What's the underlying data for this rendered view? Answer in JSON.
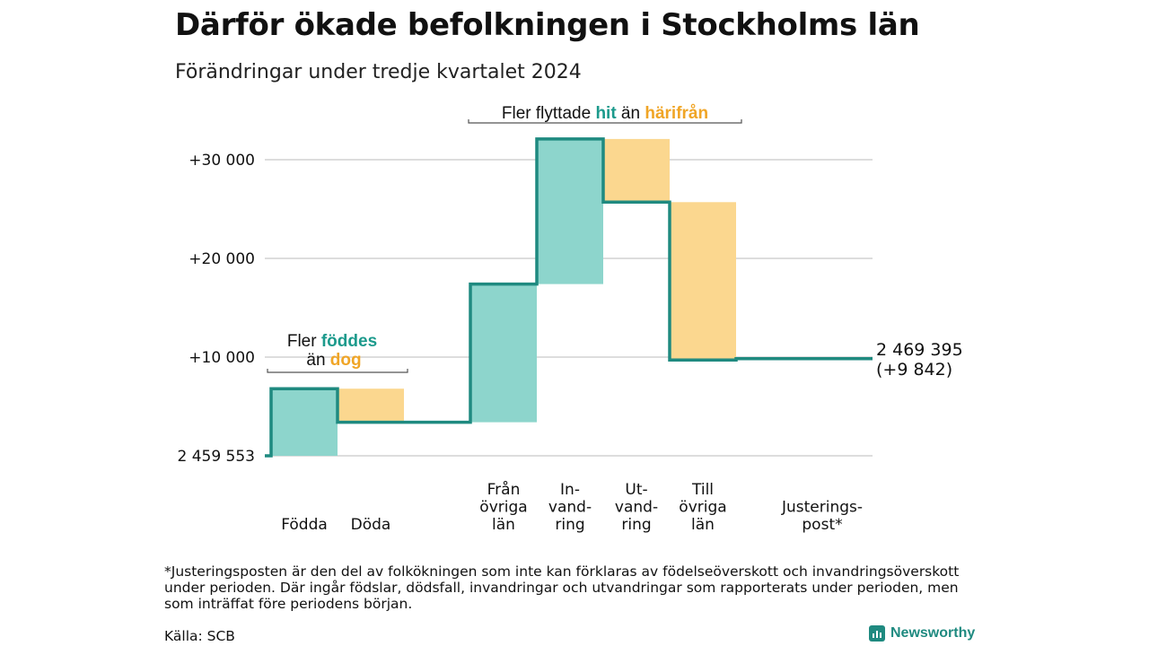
{
  "title": "Därför ökade befolkningen i Stockholms län",
  "subtitle": "Förändringar under tredje kvartalet 2024",
  "colors": {
    "accent_teal": "#1c9a8c",
    "inflow_fill": "#8dd5cc",
    "outflow_fill": "#fbd78f",
    "outflow_text": "#f0a526",
    "step_line": "#1f8a80",
    "grid": "#dddddd"
  },
  "annotations": {
    "migration": {
      "prefix": "Fler flyttade ",
      "hit": "hit",
      "middle": " än ",
      "harifran": "härifrån"
    },
    "births": {
      "line1_prefix": "Fler ",
      "fodes": "föddes",
      "line2_prefix": "än ",
      "dog": "dog"
    }
  },
  "end_label": {
    "total": "2 469 395",
    "change": "(+9 842)"
  },
  "footnote": "*Justeringsposten är den del av folkökningen som inte kan förklaras av födelseöverskott och invandringsöverskott under perioden. Där ingår födslar, dödsfall, invandringar och utvandringar som rapporterats under perioden, men som inträffat före periodens början.",
  "source": "Källa: SCB",
  "brand": "Newsworthy",
  "chart_data": {
    "type": "waterfall",
    "start_label": "2 459 553",
    "ylim": [
      0,
      32000
    ],
    "yticks": [
      {
        "value": 10000,
        "label": "+10 000"
      },
      {
        "value": 20000,
        "label": "+20 000"
      },
      {
        "value": 30000,
        "label": "+30 000"
      }
    ],
    "grid": true,
    "steps": [
      {
        "label": [
          "Födda"
        ],
        "change": 6800,
        "kind": "inflow"
      },
      {
        "label": [
          "Döda"
        ],
        "change": -3400,
        "kind": "outflow"
      },
      {
        "label": [],
        "change": 0,
        "kind": "gap"
      },
      {
        "label": [
          "Från",
          "övriga",
          "län"
        ],
        "change": 14000,
        "kind": "inflow"
      },
      {
        "label": [
          "In-",
          "vand-",
          "ring"
        ],
        "change": 14700,
        "kind": "inflow"
      },
      {
        "label": [
          "Ut-",
          "vand-",
          "ring"
        ],
        "change": -6400,
        "kind": "outflow"
      },
      {
        "label": [
          "Till",
          "övriga",
          "län"
        ],
        "change": -16000,
        "kind": "outflow"
      },
      {
        "label": [
          "Justerings-",
          "post*"
        ],
        "change": 140,
        "kind": "adjustment"
      }
    ],
    "end_value_change": 9842
  }
}
